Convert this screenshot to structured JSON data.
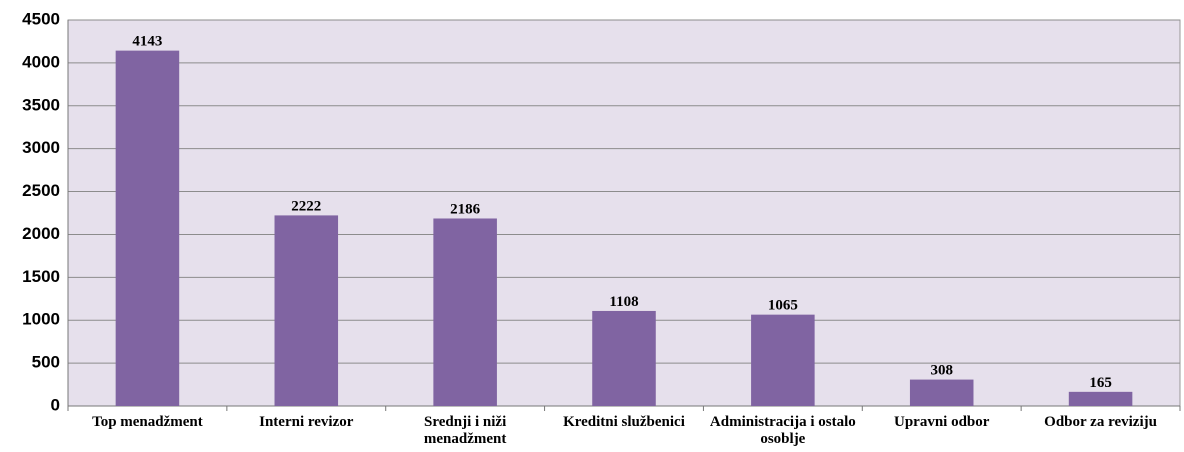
{
  "chart_data": {
    "type": "bar",
    "categories": [
      "Top menadžment",
      "Interni revizor",
      "Srednji i niži menadžment",
      "Kreditni službenici",
      "Administracija i ostalo osoblje",
      "Upravni odbor",
      "Odbor za reviziju"
    ],
    "values": [
      4143,
      2222,
      2186,
      1108,
      1065,
      308,
      165
    ],
    "color": "#8064a2",
    "ylim": [
      0,
      4500
    ],
    "yticks": [
      0,
      500,
      1000,
      1500,
      2000,
      2500,
      3000,
      3500,
      4000,
      4500
    ],
    "grid": true,
    "plot_background": "#e6e0ec"
  }
}
